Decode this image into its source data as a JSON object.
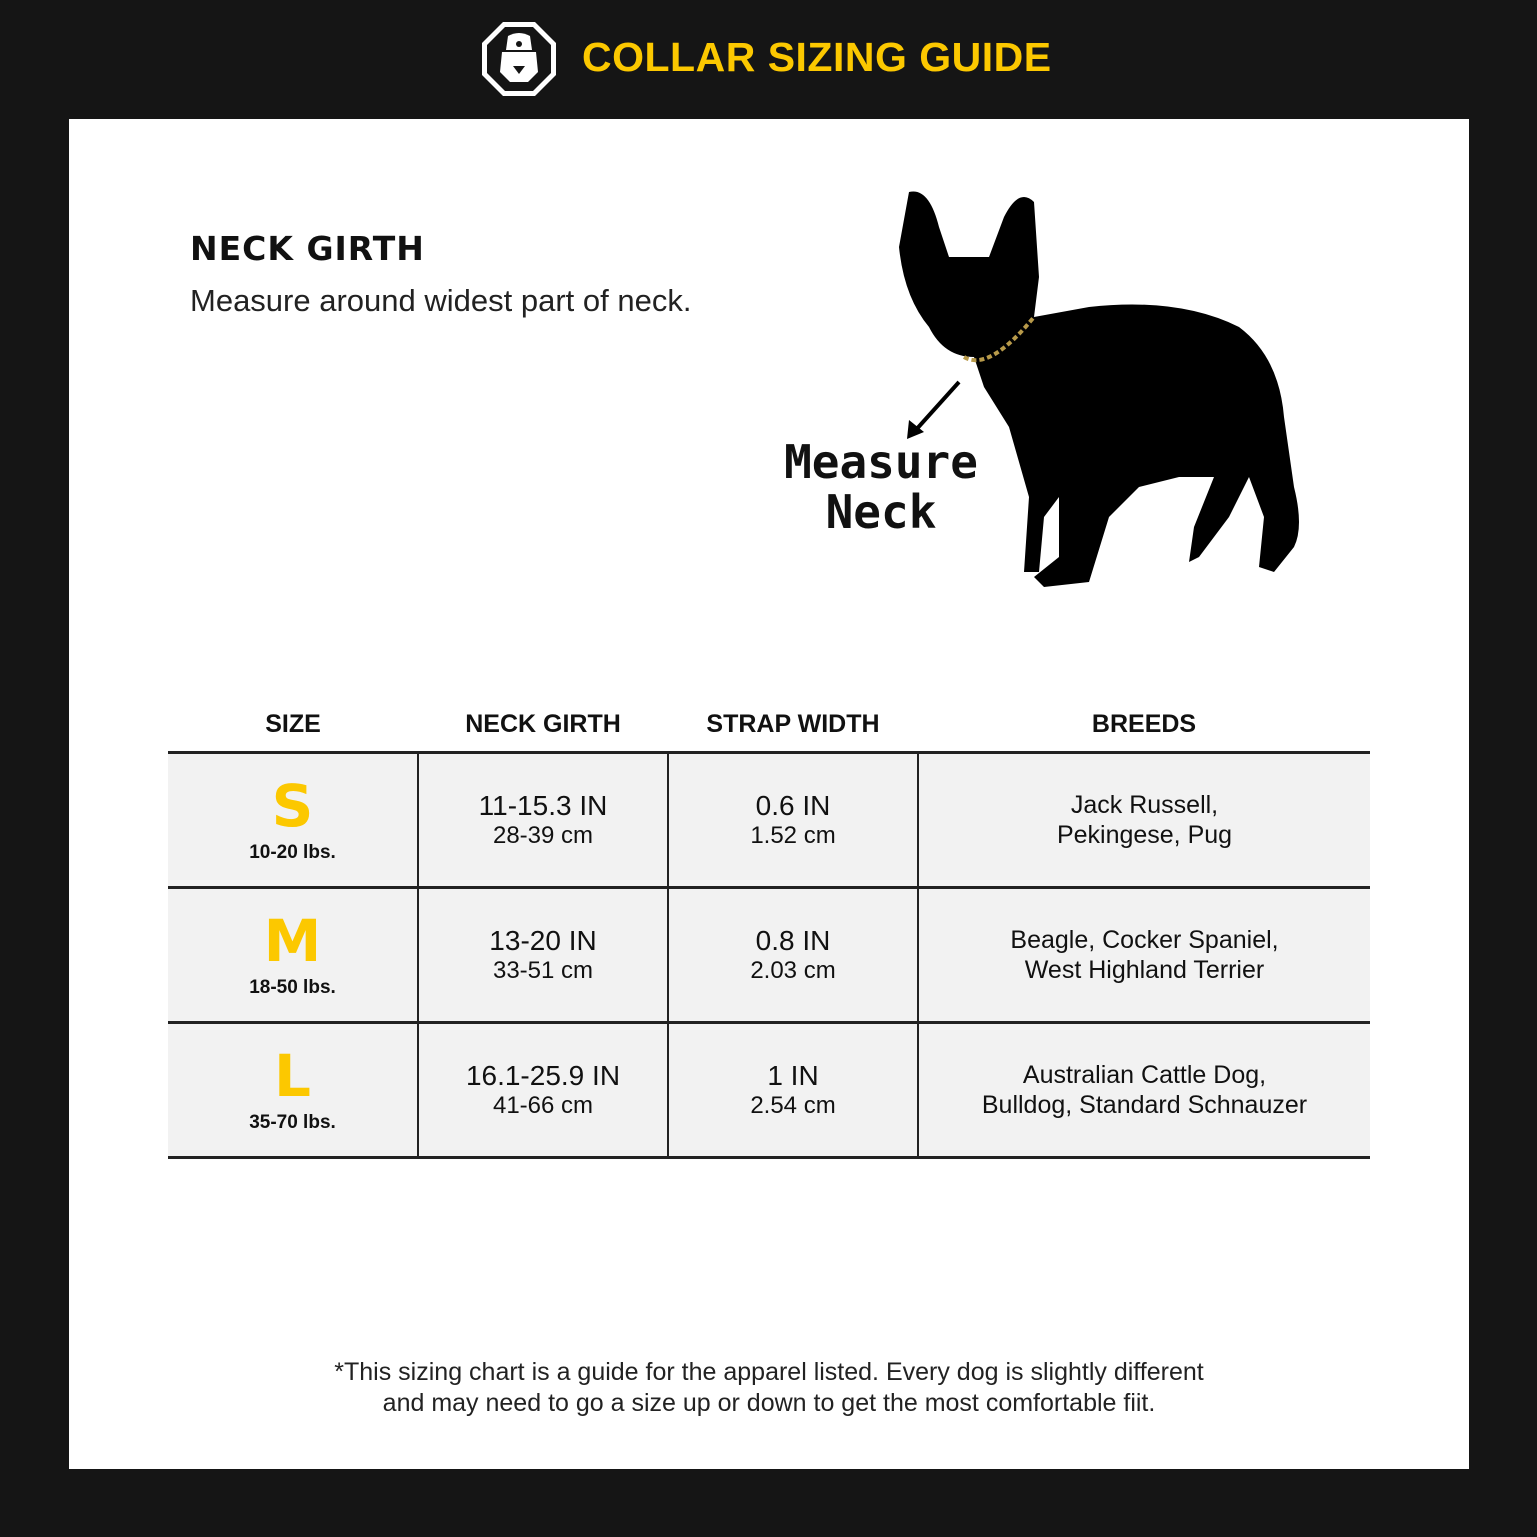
{
  "header": {
    "title": "COLLAR SIZING GUIDE",
    "logo": "bulldog-firefighter-logo"
  },
  "intro": {
    "heading": "NECK GIRTH",
    "text": "Measure around widest part of neck."
  },
  "illustration": {
    "caption_line1": "Measure",
    "caption_line2": "Neck"
  },
  "table": {
    "headers": [
      "SIZE",
      "NECK GIRTH",
      "STRAP WIDTH",
      "BREEDS"
    ],
    "rows": [
      {
        "size": "S",
        "weight": "10-20 lbs.",
        "girth_in": "11-15.3 IN",
        "girth_cm": "28-39 cm",
        "strap_in": "0.6 IN",
        "strap_cm": "1.52 cm",
        "breeds1": "Jack Russell,",
        "breeds2": "Pekingese, Pug"
      },
      {
        "size": "M",
        "weight": "18-50 lbs.",
        "girth_in": "13-20 IN",
        "girth_cm": "33-51 cm",
        "strap_in": "0.8 IN",
        "strap_cm": "2.03 cm",
        "breeds1": "Beagle, Cocker Spaniel,",
        "breeds2": "West Highland Terrier"
      },
      {
        "size": "L",
        "weight": "35-70 lbs.",
        "girth_in": "16.1-25.9 IN",
        "girth_cm": "41-66 cm",
        "strap_in": "1 IN",
        "strap_cm": "2.54 cm",
        "breeds1": "Australian Cattle Dog,",
        "breeds2": "Bulldog, Standard Schnauzer"
      }
    ]
  },
  "footnote": {
    "line1": "*This sizing chart is a guide for the apparel listed. Every dog is slightly different",
    "line2": "and may need to go a size up or down to get the most comfortable fiit."
  },
  "colors": {
    "accent": "#fcc800",
    "background": "#151515",
    "row": "#f2f2f2"
  }
}
